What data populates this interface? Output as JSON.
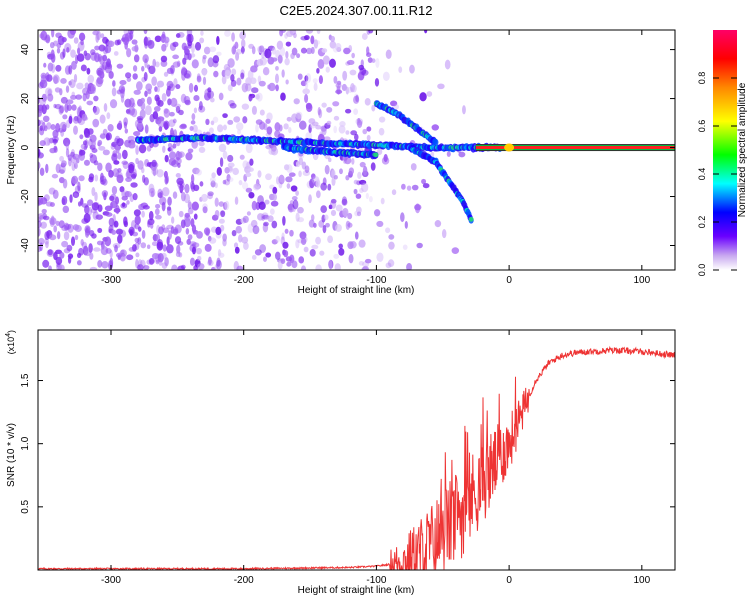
{
  "title": "C2E5.2024.307.00.11.R12",
  "chart_data": [
    {
      "type": "heatmap",
      "xlabel": "Height of straight line (km)",
      "ylabel": "Frequency (Hz)",
      "xlim": [
        -355,
        125
      ],
      "ylim": [
        -50,
        48
      ],
      "xticks": [
        -300,
        -200,
        -100,
        0,
        100
      ],
      "yticks": [
        -40,
        -20,
        0,
        20,
        40
      ],
      "colorbar": {
        "label": "Normalized spectral amplitude",
        "range": [
          0,
          1
        ],
        "ticks": [
          "0.0",
          "0.2",
          "0.4",
          "0.6",
          "0.8"
        ],
        "tick_values": [
          0.0,
          0.2,
          0.4,
          0.6,
          0.8
        ]
      },
      "features": [
        {
          "name": "main-tone",
          "x": [
            -280,
            -230,
            -150,
            -100,
            -60,
            -30,
            -20,
            0,
            125
          ],
          "y": [
            3,
            4,
            2,
            1,
            0,
            0,
            0,
            0,
            0
          ]
        },
        {
          "name": "upper-branch",
          "x": [
            -100,
            -85,
            -70,
            -55
          ],
          "y": [
            18,
            14,
            8,
            2
          ]
        },
        {
          "name": "lower-branch",
          "x": [
            -75,
            -55,
            -45,
            -35,
            -28
          ],
          "y": [
            0,
            -6,
            -14,
            -22,
            -30
          ]
        },
        {
          "name": "secondary-tone",
          "x": [
            -170,
            -130,
            -100
          ],
          "y": [
            0,
            -2,
            -3
          ]
        }
      ]
    },
    {
      "type": "line",
      "xlabel": "Height of straight line (km)",
      "ylabel": "SNR (10 * v/v)",
      "multiplier": "(x10",
      "multiplier_exp": "4",
      "multiplier_close": ")",
      "xlim": [
        -355,
        125
      ],
      "ylim": [
        0,
        1.9
      ],
      "xticks": [
        -300,
        -200,
        -100,
        0,
        100
      ],
      "yticks": [
        0.5,
        1.0,
        1.5
      ],
      "ytick_labels": [
        "0.5",
        "1.0",
        "1.5"
      ],
      "color": "#ee3333",
      "series": [
        {
          "x": [
            -355,
            -300,
            -200,
            -120,
            -100,
            -80,
            -70,
            -60,
            -50,
            -40,
            -30,
            -20,
            -10,
            0,
            10,
            20,
            30,
            40,
            50,
            60,
            80,
            100,
            125
          ],
          "y": [
            0.01,
            0.01,
            0.01,
            0.02,
            0.03,
            0.06,
            0.12,
            0.2,
            0.3,
            0.4,
            0.55,
            0.7,
            0.85,
            1.0,
            1.25,
            1.5,
            1.64,
            1.7,
            1.72,
            1.73,
            1.74,
            1.73,
            1.7
          ]
        }
      ]
    }
  ]
}
